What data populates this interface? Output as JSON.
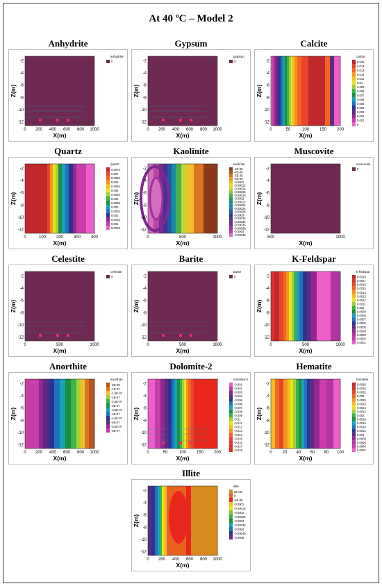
{
  "title": "At 40 ºC – Model 2",
  "chart_data": [
    {
      "type": "heatmap",
      "title": "Anhydrite",
      "xlabel": "X(m)",
      "ylabel": "Z(m)",
      "xticks": [
        "0",
        "200",
        "400",
        "600",
        "800",
        "1000"
      ],
      "yticks": [
        "-2",
        "-4",
        "-6",
        "-8",
        "-10",
        "-12"
      ],
      "legend_title": "anhydrite",
      "legend_labels": [
        "0"
      ],
      "colors": [
        "#6e2a52"
      ],
      "field": "uniform",
      "artifacts": true
    },
    {
      "type": "heatmap",
      "title": "Gypsum",
      "xlabel": "X(m)",
      "ylabel": "Z(m)",
      "xticks": [
        "0",
        "200",
        "400",
        "600",
        "800",
        "1000"
      ],
      "yticks": [
        "-2",
        "-4",
        "-6",
        "-8",
        "-10",
        "-12"
      ],
      "legend_title": "gypsum",
      "legend_labels": [
        "0"
      ],
      "colors": [
        "#6e2a52"
      ],
      "field": "uniform",
      "artifacts": true
    },
    {
      "type": "heatmap",
      "title": "Calcite",
      "xlabel": "X(m)",
      "ylabel": "Z(m)",
      "xticks": [
        "0",
        "50",
        "100",
        "150",
        "200"
      ],
      "yticks": [
        "-2",
        "-4",
        "-6",
        "-8",
        "-10",
        "-12"
      ],
      "legend_title": "calcite",
      "legend_labels": [
        "0.015",
        "0.014",
        "0.013",
        "0.012",
        "0.011",
        "0.01",
        "0.009",
        "0.008",
        "0.007",
        "0.006",
        "0.005",
        "0.004",
        "0.003",
        "0.002",
        "0.001",
        "0"
      ],
      "colors": [
        "#c0282d",
        "#e8452c",
        "#f26522",
        "#f7941d",
        "#f2c018",
        "#e8e41e",
        "#a6ce39",
        "#3cb44b",
        "#1f8e3d",
        "#17a2b8",
        "#1c75bc",
        "#2e3192",
        "#5b2c83",
        "#92278f",
        "#c83da8",
        "#ec5fc7"
      ],
      "field": "calcite",
      "artifacts": false
    },
    {
      "type": "heatmap",
      "title": "Quartz",
      "xlabel": "X(m)",
      "ylabel": "Z(m)",
      "xticks": [
        "0",
        "100",
        "200",
        "300",
        "400"
      ],
      "yticks": [
        "-2",
        "-4",
        "-6",
        "-8",
        "-10",
        "-12"
      ],
      "legend_title": "quartz",
      "legend_labels": [
        "0.0075",
        "0.007",
        "0.0065",
        "0.006",
        "0.0055",
        "0.005",
        "0.0045",
        "0.004",
        "0.0035",
        "0.003",
        "0.0025",
        "0.002",
        "0.0015",
        "0.001",
        "0.0005"
      ],
      "colors": [
        "#c0282d",
        "#e8452c",
        "#f26522",
        "#f7941d",
        "#f2c018",
        "#e8e41e",
        "#a6ce39",
        "#3cb44b",
        "#1f8e3d",
        "#17a2b8",
        "#1c75bc",
        "#2e3192",
        "#92278f",
        "#c83da8",
        "#ec5fc7"
      ],
      "field": "quartz",
      "artifacts": false
    },
    {
      "type": "heatmap",
      "title": "Kaolinite",
      "xlabel": "X(m)",
      "ylabel": "Z(m)",
      "xticks": [
        "0",
        "500",
        "1000"
      ],
      "yticks": [
        "-2",
        "-4",
        "-6",
        "-8",
        "-10",
        "-12"
      ],
      "legend_title": "kaolinite",
      "legend_labels": [
        "-2E-05",
        "-4E-05",
        "-6E-05",
        "-8E-05",
        "-0.0001",
        "-0.00012",
        "-0.00014",
        "-0.00016",
        "-0.00018",
        "-0.0002",
        "-0.00022",
        "-0.00024",
        "-0.00026",
        "-0.00028",
        "-0.0003",
        "-0.00032",
        "-0.00034",
        "-0.00036",
        "-0.00038",
        "-0.0004",
        "-0.00042"
      ],
      "colors": [
        "#8a3a1a",
        "#b5541c",
        "#d9761f",
        "#eb9a24",
        "#f2be2a",
        "#e9d82c",
        "#c5d532",
        "#8bc53f",
        "#4caf50",
        "#2e9e5b",
        "#1c8c7c",
        "#178ca3",
        "#1c75bc",
        "#2456a8",
        "#2e3192",
        "#47308f",
        "#5f2c8c",
        "#7b2b8e",
        "#9b3196",
        "#b944a6",
        "#d36dc0"
      ],
      "field": "kaolinite",
      "artifacts": false
    },
    {
      "type": "heatmap",
      "title": "Muscovite",
      "xlabel": "X(m)",
      "ylabel": "Z(m)",
      "xticks": [
        "500",
        "1000"
      ],
      "yticks": [
        "-2",
        "-4",
        "-6",
        "-8",
        "-10",
        "-12"
      ],
      "legend_title": "muscovite",
      "legend_labels": [
        "0"
      ],
      "colors": [
        "#6e2a52"
      ],
      "field": "uniform",
      "artifacts": false
    },
    {
      "type": "heatmap",
      "title": "Celestite",
      "xlabel": "X(m)",
      "ylabel": "Z(m)",
      "xticks": [
        "0",
        "500",
        "1000"
      ],
      "yticks": [
        "-2",
        "-4",
        "-6",
        "-8",
        "-10",
        "-12"
      ],
      "legend_title": "celestite",
      "legend_labels": [
        "0"
      ],
      "colors": [
        "#6e2a52"
      ],
      "field": "uniform",
      "artifacts": true
    },
    {
      "type": "heatmap",
      "title": "Barite",
      "xlabel": "X(m)",
      "ylabel": "Z(m)",
      "xticks": [
        "0",
        "500",
        "1000"
      ],
      "yticks": [
        "-2",
        "-4",
        "-6",
        "-8",
        "-10",
        "-12"
      ],
      "legend_title": "barite",
      "legend_labels": [
        "0"
      ],
      "colors": [
        "#6e2a52"
      ],
      "field": "uniform",
      "artifacts": true
    },
    {
      "type": "heatmap",
      "title": "K-Feldspar",
      "xlabel": "X(m)",
      "ylabel": "Z(m)",
      "xticks": [
        "0",
        "500",
        "1000"
      ],
      "yticks": [
        "-2",
        "-4",
        "-6",
        "-8",
        "-10",
        "-12"
      ],
      "legend_title": "k-feldspar",
      "legend_labels": [
        "0.0018",
        "0.0017",
        "0.0016",
        "0.0015",
        "0.0014",
        "0.0013",
        "0.0012",
        "0.0011",
        "0.001",
        "0.0009",
        "0.0008",
        "0.0007",
        "0.0006",
        "0.0005",
        "0.0004",
        "0.0003",
        "0.0002",
        "0.0001"
      ],
      "colors": [
        "#c0282d",
        "#d9342b",
        "#e8452c",
        "#f26522",
        "#f7941d",
        "#f2c018",
        "#e8e41e",
        "#a6ce39",
        "#3cb44b",
        "#1f8e3d",
        "#17a2b8",
        "#1c75bc",
        "#2e3192",
        "#5b2c83",
        "#92278f",
        "#b035a0",
        "#c83da8",
        "#ec5fc7"
      ],
      "field": "kfeldspar",
      "artifacts": false
    },
    {
      "type": "heatmap",
      "title": "Anorthite",
      "xlabel": "X(m)",
      "ylabel": "Z(m)",
      "xticks": [
        "0",
        "200",
        "400",
        "600",
        "800",
        "1000"
      ],
      "yticks": [
        "-2",
        "-4",
        "-6",
        "-8",
        "-10",
        "-12"
      ],
      "legend_title": "anorthite",
      "legend_labels": [
        "-5E-08",
        "-1E-07",
        "-1.5E-07",
        "-2E-07",
        "-2.5E-07",
        "-3E-07",
        "-3.5E-07",
        "-4E-07",
        "-4.5E-07",
        "-5E-07",
        "-5.5E-07",
        "-6E-07"
      ],
      "colors": [
        "#b5541c",
        "#d9761f",
        "#f2be2a",
        "#a6ce39",
        "#3cb44b",
        "#1f8e3d",
        "#17a2b8",
        "#1c75bc",
        "#2e3192",
        "#5b2c83",
        "#92278f",
        "#c83da8"
      ],
      "field": "anorthite",
      "artifacts": false
    },
    {
      "type": "heatmap",
      "title": "Dolomite-2",
      "xlabel": "X(m)",
      "ylabel": "Z(m)",
      "xticks": [
        "0",
        "50",
        "100",
        "150",
        "200"
      ],
      "yticks": [
        "-2",
        "-4",
        "-6",
        "-8",
        "-10",
        "-12"
      ],
      "legend_title": "dolomite-2",
      "legend_labels": [
        "-0.001",
        "-0.002",
        "-0.003",
        "-0.004",
        "-0.005",
        "-0.006",
        "-0.007",
        "-0.008",
        "-0.009",
        "-0.01",
        "-0.011",
        "-0.012",
        "-0.013",
        "-0.014",
        "-0.015",
        "-0.016",
        "-0.017",
        "-0.018"
      ],
      "colors": [
        "#ec5fc7",
        "#c83da8",
        "#92278f",
        "#5b2c83",
        "#2e3192",
        "#1c75bc",
        "#17a2b8",
        "#1f8e3d",
        "#3cb44b",
        "#a6ce39",
        "#e8e41e",
        "#f2c018",
        "#f7941d",
        "#f26522",
        "#e8452c",
        "#e0382c",
        "#d9342b",
        "#e8281e"
      ],
      "field": "dolomite",
      "artifacts": true
    },
    {
      "type": "heatmap",
      "title": "Hematite",
      "xlabel": "X(m)",
      "ylabel": "Z(m)",
      "xticks": [
        "0",
        "20",
        "40",
        "60",
        "80",
        "100"
      ],
      "yticks": [
        "-2",
        "-4",
        "-6",
        "-8",
        "-10",
        "-12"
      ],
      "legend_title": "hematite",
      "legend_labels": [
        "0.0036",
        "0.0034",
        "0.0032",
        "0.003",
        "0.0028",
        "0.0026",
        "0.0024",
        "0.0022",
        "0.002",
        "0.0018",
        "0.0016",
        "0.0014",
        "0.0012",
        "0.001",
        "0.0008",
        "0.0006",
        "0.0004",
        "0.0002"
      ],
      "colors": [
        "#c0282d",
        "#d9342b",
        "#e8452c",
        "#f26522",
        "#f7941d",
        "#f2c018",
        "#e8e41e",
        "#a6ce39",
        "#3cb44b",
        "#1f8e3d",
        "#17a2b8",
        "#1c75bc",
        "#2e3192",
        "#5b2c83",
        "#92278f",
        "#b035a0",
        "#c83da8",
        "#ec5fc7"
      ],
      "field": "hematite",
      "artifacts": false
    },
    {
      "type": "heatmap",
      "title": "Illite",
      "xlabel": "X(m)",
      "ylabel": "Z(m)",
      "xticks": [
        "0",
        "200",
        "400",
        "600",
        "800",
        "1000"
      ],
      "yticks": [
        "-2",
        "-4",
        "-6",
        "-8",
        "-10",
        "-12"
      ],
      "legend_title": "illite",
      "legend_labels": [
        "5E-05",
        "0",
        "-5E-05",
        "-0.0001",
        "-0.00015",
        "-0.0002",
        "-0.00025",
        "-0.0003",
        "-0.00035",
        "-0.0004",
        "-0.00045",
        "-0.0005"
      ],
      "colors": [
        "#d98a1c",
        "#e9611f",
        "#e8281e",
        "#f2be2a",
        "#e8e41e",
        "#8bc53f",
        "#3cb44b",
        "#1f8e3d",
        "#17a2b8",
        "#1c75bc",
        "#2e3192",
        "#5b2c83"
      ],
      "field": "illite",
      "artifacts": false
    }
  ]
}
